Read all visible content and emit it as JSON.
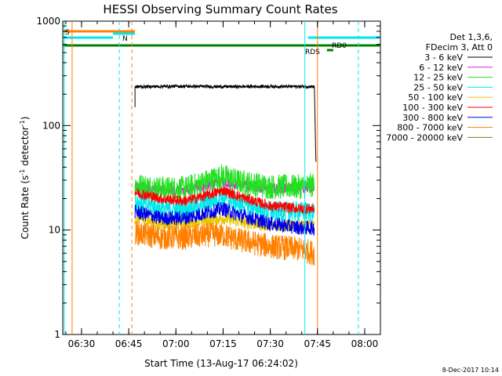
{
  "chart_data": {
    "type": "line",
    "title": "HESSI Observing Summary Count Rates",
    "xlabel": "Start Time (13-Aug-17 06:24:02)",
    "ylabel_main": "Count Rate (s",
    "ylabel_sup1": "-1",
    "ylabel_mid": " detector",
    "ylabel_sup2": "-1",
    "ylabel_end": ")",
    "yscale": "log",
    "ylim": [
      1,
      1000
    ],
    "xlim": [
      "06:24:02",
      "08:05:00"
    ],
    "x_ticks": [
      "06:30",
      "06:45",
      "07:00",
      "07:15",
      "07:30",
      "07:45",
      "08:00"
    ],
    "y_ticks": [
      "1",
      "10",
      "100",
      "1000"
    ],
    "legend_header": [
      "Det 1,3,6,",
      "FDecim 3, Att 0"
    ],
    "series": [
      {
        "name": "3 - 6 keV",
        "color": "#000000",
        "x": [
          "06:47",
          "07:00",
          "07:15",
          "07:30",
          "07:44"
        ],
        "y": [
          235,
          238,
          236,
          237,
          236
        ]
      },
      {
        "name": "6 - 12 keV",
        "color": "#e020e0",
        "x": [
          "06:47",
          "06:55",
          "07:03",
          "07:11",
          "07:15",
          "07:20",
          "07:30",
          "07:40",
          "07:44"
        ],
        "y": [
          26,
          24,
          24,
          27,
          29,
          27,
          25,
          25,
          26
        ]
      },
      {
        "name": "12 - 25 keV",
        "color": "#20e020",
        "x": [
          "06:47",
          "06:55",
          "07:03",
          "07:11",
          "07:15",
          "07:20",
          "07:30",
          "07:40",
          "07:44"
        ],
        "y": [
          27,
          25,
          25,
          30,
          33,
          29,
          26,
          26,
          27
        ]
      },
      {
        "name": "25 - 50 keV",
        "color": "#00e8e8",
        "x": [
          "06:47",
          "06:55",
          "07:03",
          "07:11",
          "07:15",
          "07:20",
          "07:30",
          "07:40",
          "07:44"
        ],
        "y": [
          19,
          16,
          16,
          19,
          21,
          18,
          15,
          15,
          15
        ]
      },
      {
        "name": "50 - 100 keV",
        "color": "#e8c800",
        "x": [
          "06:47",
          "06:55",
          "07:03",
          "07:11",
          "07:15",
          "07:20",
          "07:30",
          "07:40",
          "07:44"
        ],
        "y": [
          13,
          11.5,
          11.5,
          12.5,
          13,
          12,
          11,
          11,
          11
        ]
      },
      {
        "name": "100 - 300 keV",
        "color": "#ff0000",
        "x": [
          "06:47",
          "06:55",
          "07:03",
          "07:11",
          "07:15",
          "07:20",
          "07:30",
          "07:40",
          "07:44"
        ],
        "y": [
          23,
          20,
          19,
          22,
          24,
          21,
          17,
          16,
          16
        ]
      },
      {
        "name": "300 - 800 keV",
        "color": "#0000e8",
        "x": [
          "06:47",
          "06:55",
          "07:03",
          "07:11",
          "07:15",
          "07:20",
          "07:30",
          "07:40",
          "07:44"
        ],
        "y": [
          15,
          13,
          13,
          15,
          16,
          14,
          11.5,
          10.5,
          10.5
        ]
      },
      {
        "name": "800 - 7000 keV",
        "color": "#ff8000",
        "x": [
          "06:47",
          "06:55",
          "07:03",
          "07:11",
          "07:15",
          "07:20",
          "07:30",
          "07:40",
          "07:44"
        ],
        "y": [
          9.5,
          8.5,
          8.5,
          9,
          9,
          8,
          7,
          6.5,
          6
        ]
      },
      {
        "name": "7000 - 20000 keV",
        "color": "#808000",
        "x": [],
        "y": []
      }
    ],
    "annotations": [
      {
        "label": "S",
        "color": "#ff8000"
      },
      {
        "label": "N",
        "color": "#00e8e8"
      },
      {
        "label": "RDS",
        "color": "#008000"
      },
      {
        "label": "RD0",
        "color": "#008000"
      }
    ],
    "footer_timestamp": "8-Dec-2017 10:14",
    "plot_background": "#ffffff"
  }
}
